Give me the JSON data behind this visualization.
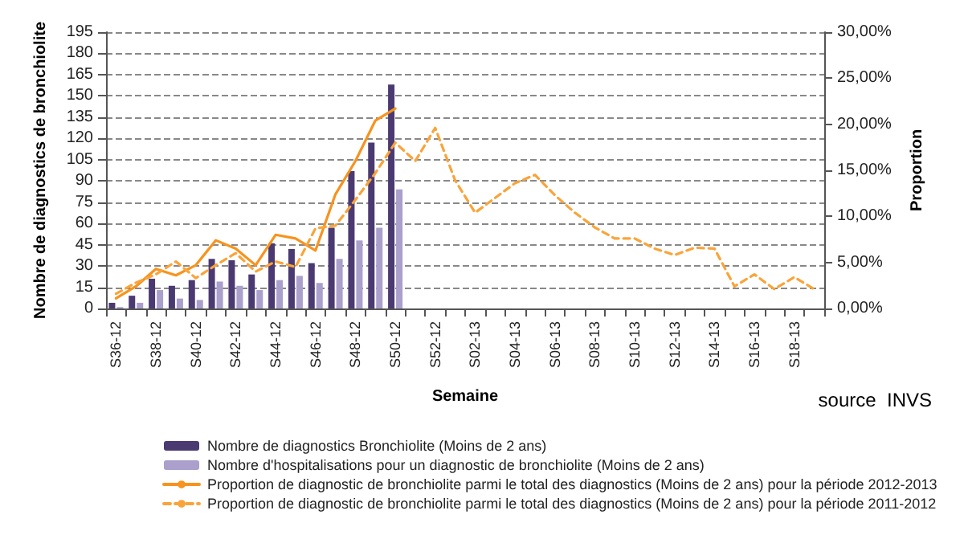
{
  "chart_data": {
    "type": "bar",
    "xlabel": "Semaine",
    "ylabel": "Nombre de diagnostics de bronchiolite",
    "y2label": "Proportion",
    "categories": [
      "S36-12",
      null,
      "S38-12",
      null,
      "S40-12",
      null,
      "S42-12",
      null,
      "S44-12",
      null,
      "S46-12",
      null,
      "S48-12",
      null,
      "S50-12",
      null,
      "S52-12",
      null,
      "S02-13",
      null,
      "S04-13",
      null,
      "S06-13",
      null,
      "S08-13",
      null,
      "S10-13",
      null,
      "S12-13",
      null,
      "S14-13",
      null,
      "S16-13",
      null,
      "S18-13",
      null
    ],
    "series": [
      {
        "name": "Nombre de diagnostics Bronchiolite (Moins de 2 ans)",
        "color": "#4b3a72",
        "values": [
          4,
          9,
          21,
          16,
          20,
          35,
          34,
          24,
          46,
          42,
          32,
          57,
          97,
          117,
          158,
          null,
          null,
          null,
          null,
          null,
          null,
          null,
          null,
          null,
          null,
          null,
          null,
          null,
          null,
          null,
          null,
          null,
          null,
          null,
          null,
          null
        ]
      },
      {
        "name": "Nombre d'hospitalisations pour un diagnostic de bronchiolite (Moins de 2 ans)",
        "color": "#ab9fcc",
        "values": [
          1,
          4,
          13,
          7,
          6,
          19,
          16,
          13,
          20,
          23,
          18,
          35,
          48,
          57,
          84,
          null,
          null,
          null,
          null,
          null,
          null,
          null,
          null,
          null,
          null,
          null,
          null,
          null,
          null,
          null,
          null,
          null,
          null,
          null,
          null,
          null
        ]
      },
      {
        "name": "Proportion de diagnostic de bronchiolite parmi le total des diagnostics (Moins de 2 ans) pour la période 2012-2013",
        "type": "line",
        "axis": "y2",
        "line_style": "solid",
        "color": "#f7931e",
        "values": [
          1.1,
          2.4,
          4.3,
          3.6,
          4.7,
          7.4,
          6.5,
          4.7,
          8.0,
          7.6,
          6.3,
          12.4,
          16.0,
          20.4,
          21.7,
          null,
          null,
          null,
          null,
          null,
          null,
          null,
          null,
          null,
          null,
          null,
          null,
          null,
          null,
          null,
          null,
          null,
          null,
          null,
          null,
          null
        ]
      },
      {
        "name": "Proportion de diagnostic de bronchiolite parmi le total des diagnostics (Moins de 2 ans) pour la période 2011-2012",
        "type": "line",
        "axis": "y2",
        "line_style": "dashed",
        "color": "#f9a43a",
        "values": [
          1.6,
          2.8,
          3.7,
          5.1,
          3.3,
          4.7,
          6.0,
          4.0,
          5.1,
          4.5,
          8.7,
          9.0,
          11.8,
          14.7,
          18.0,
          16.0,
          19.6,
          13.9,
          10.4,
          12.0,
          13.6,
          14.5,
          12.3,
          10.4,
          8.8,
          7.6,
          7.6,
          6.5,
          5.8,
          6.6,
          6.5,
          2.4,
          3.7,
          2.1,
          3.4,
          2.1
        ]
      }
    ],
    "ylim": [
      0,
      195
    ],
    "yticks": [
      0,
      15,
      30,
      45,
      60,
      75,
      90,
      105,
      120,
      135,
      150,
      165,
      180,
      195
    ],
    "y2lim": [
      0,
      30
    ],
    "y2ticks": [
      {
        "value": 0,
        "label": "0,00%"
      },
      {
        "value": 5,
        "label": "5,00%"
      },
      {
        "value": 10,
        "label": "10,00%"
      },
      {
        "value": 15,
        "label": "15,00%"
      },
      {
        "value": 20,
        "label": "20,00%"
      },
      {
        "value": 25,
        "label": "25,00%"
      },
      {
        "value": 30,
        "label": "30,00%"
      }
    ],
    "grid": "y",
    "legend": "bottom",
    "marker": "none",
    "annotations": [
      "source  INVS"
    ]
  }
}
